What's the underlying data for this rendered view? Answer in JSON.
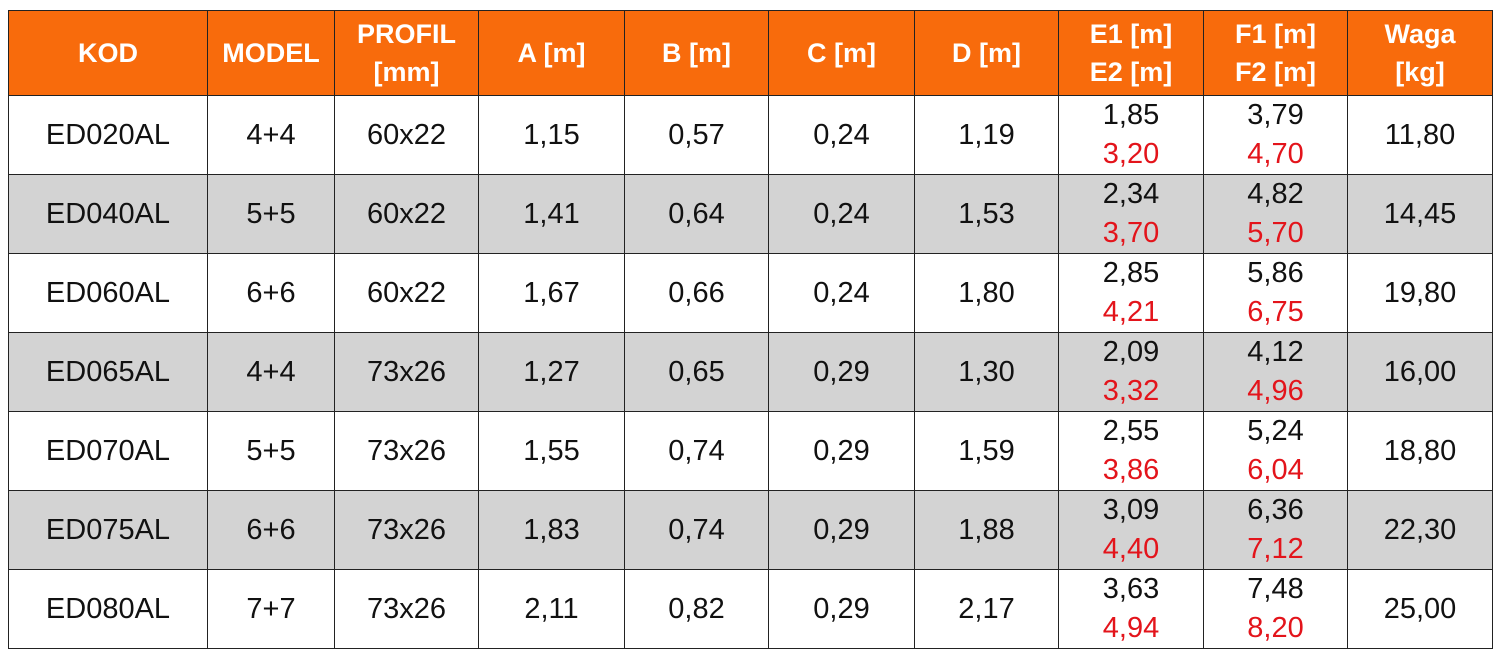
{
  "table": {
    "header": [
      [
        "KOD"
      ],
      [
        "MODEL"
      ],
      [
        "PROFIL",
        "[mm]"
      ],
      [
        "A [m]"
      ],
      [
        "B [m]"
      ],
      [
        "C [m]"
      ],
      [
        "D [m]"
      ],
      [
        "E1 [m]",
        "E2 [m]"
      ],
      [
        "F1 [m]",
        "F2 [m]"
      ],
      [
        "Waga",
        "[kg]"
      ]
    ],
    "rows": [
      [
        "ED020AL",
        "4+4",
        "60x22",
        "1,15",
        "0,57",
        "0,24",
        "1,19",
        [
          "1,85",
          "3,20"
        ],
        [
          "3,79",
          "4,70"
        ],
        "11,80"
      ],
      [
        "ED040AL",
        "5+5",
        "60x22",
        "1,41",
        "0,64",
        "0,24",
        "1,53",
        [
          "2,34",
          "3,70"
        ],
        [
          "4,82",
          "5,70"
        ],
        "14,45"
      ],
      [
        "ED060AL",
        "6+6",
        "60x22",
        "1,67",
        "0,66",
        "0,24",
        "1,80",
        [
          "2,85",
          "4,21"
        ],
        [
          "5,86",
          "6,75"
        ],
        "19,80"
      ],
      [
        "ED065AL",
        "4+4",
        "73x26",
        "1,27",
        "0,65",
        "0,29",
        "1,30",
        [
          "2,09",
          "3,32"
        ],
        [
          "4,12",
          "4,96"
        ],
        "16,00"
      ],
      [
        "ED070AL",
        "5+5",
        "73x26",
        "1,55",
        "0,74",
        "0,29",
        "1,59",
        [
          "2,55",
          "3,86"
        ],
        [
          "5,24",
          "6,04"
        ],
        "18,80"
      ],
      [
        "ED075AL",
        "6+6",
        "73x26",
        "1,83",
        "0,74",
        "0,29",
        "1,88",
        [
          "3,09",
          "4,40"
        ],
        [
          "6,36",
          "7,12"
        ],
        "22,30"
      ],
      [
        "ED080AL",
        "7+7",
        "73x26",
        "2,11",
        "0,82",
        "0,29",
        "2,17",
        [
          "3,63",
          "4,94"
        ],
        [
          "7,48",
          "8,20"
        ],
        "25,00"
      ]
    ]
  }
}
